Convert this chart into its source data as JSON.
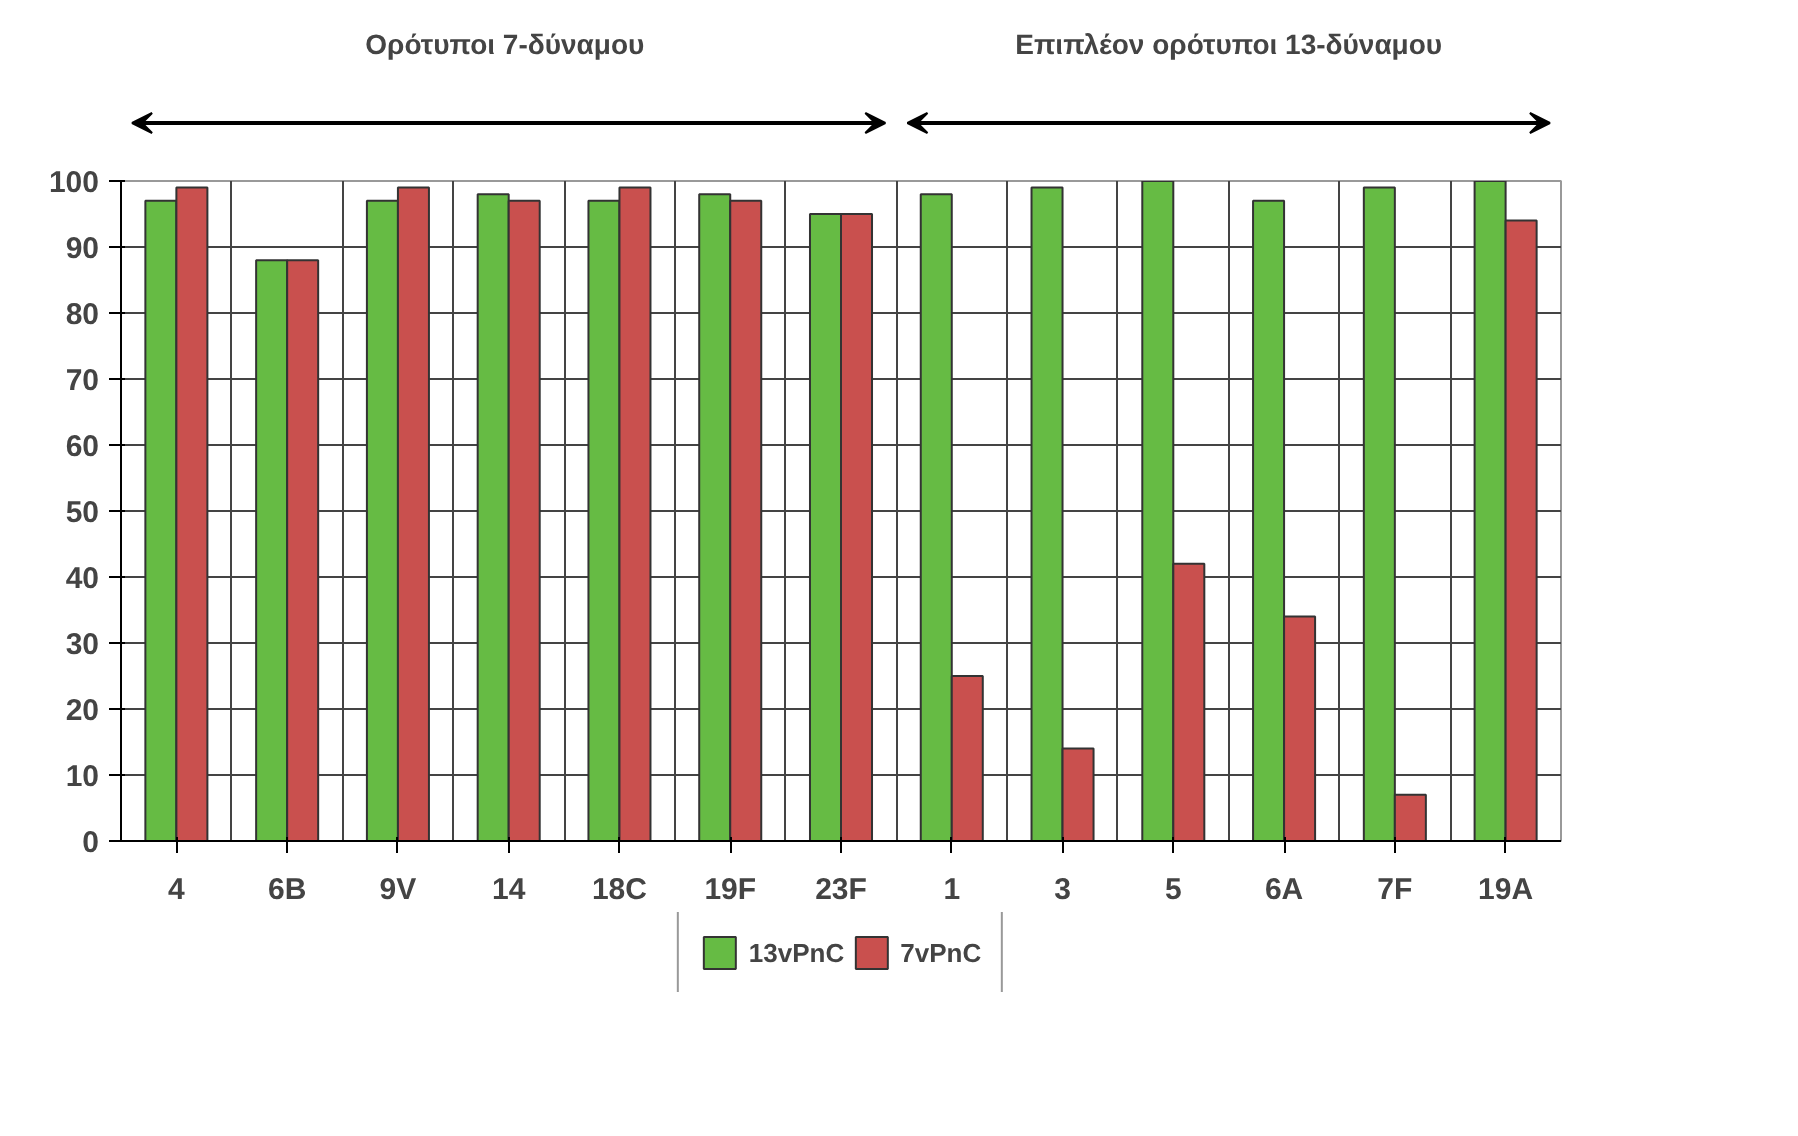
{
  "chart_data": {
    "type": "bar",
    "categories": [
      "4",
      "6B",
      "9V",
      "14",
      "18C",
      "19F",
      "23F",
      "1",
      "3",
      "5",
      "6A",
      "7F",
      "19A"
    ],
    "series": [
      {
        "name": "13vPnC",
        "color": "#66bb44",
        "values": [
          97,
          88,
          97,
          98,
          97,
          98,
          95,
          98,
          99,
          100,
          97,
          99,
          100
        ]
      },
      {
        "name": "7vPnC",
        "color": "#c9504e",
        "values": [
          99,
          88,
          99,
          97,
          99,
          97,
          95,
          25,
          14,
          42,
          34,
          7,
          94
        ]
      }
    ],
    "annotations": [
      "Ορότυποι  7-δύναμου",
      "Επιπλέον ορότυποι 13-δύναμου"
    ],
    "ylim": [
      0,
      100
    ],
    "yticks": [
      0,
      10,
      20,
      30,
      40,
      50,
      60,
      70,
      80,
      90,
      100
    ],
    "grid": true,
    "legend": "bottom"
  }
}
